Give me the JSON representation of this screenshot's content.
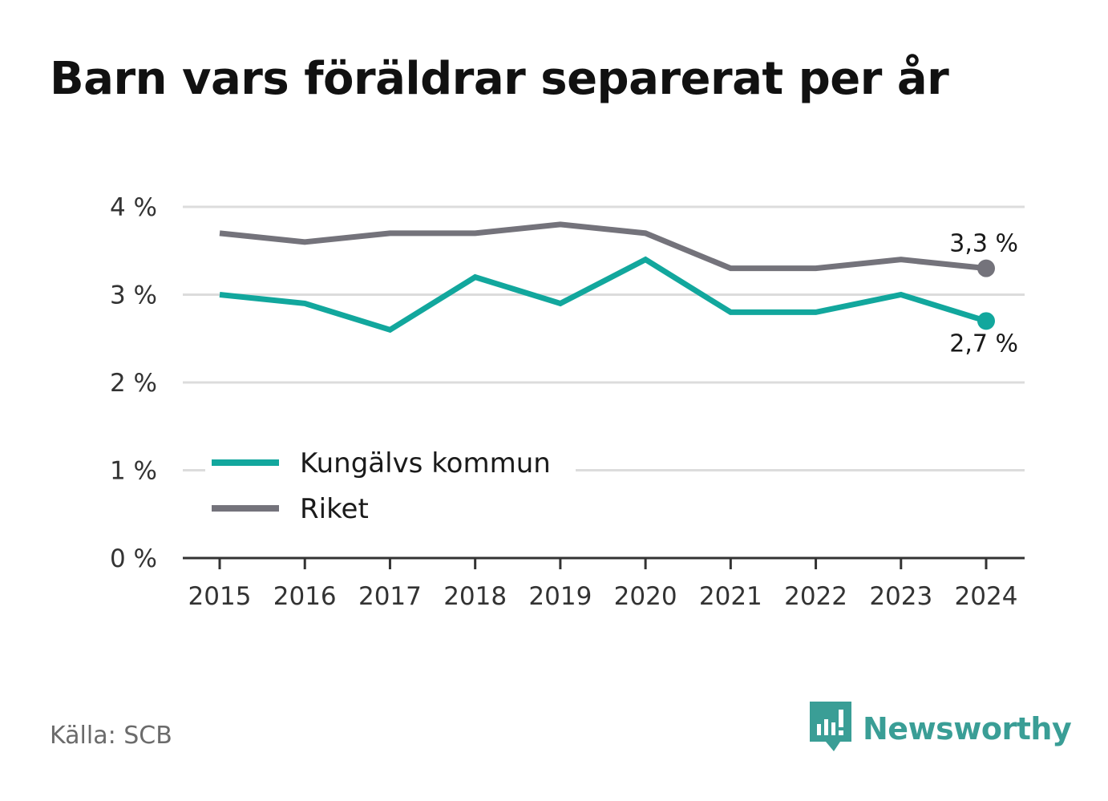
{
  "title": "Barn vars föräldrar separerat per år",
  "source": "Källa: SCB",
  "brand": {
    "name": "Newsworthy",
    "icon": "newsworthy-logo-icon",
    "color": "#3a9e96"
  },
  "chart_data": {
    "type": "line",
    "title": "Barn vars föräldrar separerat per år",
    "x": [
      "2015",
      "2016",
      "2017",
      "2018",
      "2019",
      "2020",
      "2021",
      "2022",
      "2023",
      "2024"
    ],
    "ylim": [
      0,
      4
    ],
    "yticks": [
      0,
      1,
      2,
      3,
      4
    ],
    "ytick_labels": [
      "0 %",
      "1 %",
      "2 %",
      "3 %",
      "4 %"
    ],
    "grid": true,
    "legend_position": "bottom-left",
    "series": [
      {
        "name": "Kungälvs kommun",
        "color": "#12a79d",
        "values": [
          3.0,
          2.9,
          2.6,
          3.2,
          2.9,
          3.4,
          2.8,
          2.8,
          3.0,
          2.7
        ],
        "end_label": "2,7 %"
      },
      {
        "name": "Riket",
        "color": "#74737b",
        "values": [
          3.7,
          3.6,
          3.7,
          3.7,
          3.8,
          3.7,
          3.3,
          3.3,
          3.4,
          3.3
        ],
        "end_label": "3,3 %"
      }
    ]
  }
}
